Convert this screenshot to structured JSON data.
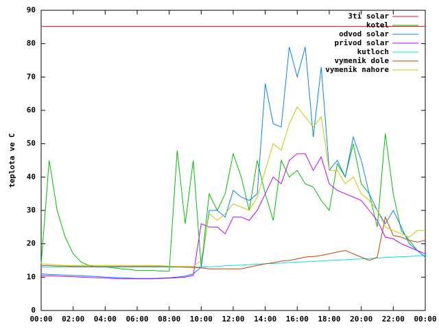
{
  "chart_data": {
    "type": "line",
    "ylabel": "teplota ve C",
    "legend": "top-right",
    "xlim": [
      0,
      24
    ],
    "xticks": [
      {
        "value": 0,
        "label": "00:00"
      },
      {
        "value": 2,
        "label": "02:00"
      },
      {
        "value": 4,
        "label": "04:00"
      },
      {
        "value": 6,
        "label": "06:00"
      },
      {
        "value": 8,
        "label": "08:00"
      },
      {
        "value": 10,
        "label": "10:00"
      },
      {
        "value": 12,
        "label": "12:00"
      },
      {
        "value": 14,
        "label": "14:00"
      },
      {
        "value": 16,
        "label": "16:00"
      },
      {
        "value": 18,
        "label": "18:00"
      },
      {
        "value": 20,
        "label": "20:00"
      },
      {
        "value": 22,
        "label": "22:00"
      },
      {
        "value": 24,
        "label": "00:00"
      }
    ],
    "ylim": [
      0,
      90
    ],
    "yticks": [
      0,
      10,
      20,
      30,
      40,
      50,
      60,
      70,
      80,
      90
    ],
    "x": [
      0,
      0.5,
      1,
      1.5,
      2,
      2.5,
      3,
      3.5,
      4,
      4.5,
      5,
      5.5,
      6,
      6.5,
      7,
      7.5,
      8,
      8.5,
      9,
      9.5,
      10,
      10.5,
      11,
      11.5,
      12,
      12.5,
      13,
      13.5,
      14,
      14.5,
      15,
      15.5,
      16,
      16.5,
      17,
      17.5,
      18,
      18.5,
      19,
      19.5,
      20,
      20.5,
      21,
      21.5,
      22,
      22.5,
      23,
      23.5,
      24
    ],
    "series": [
      {
        "name": "3ti solar",
        "color": "#ff0000",
        "values": [
          85.2,
          85.2,
          85.2,
          85.2,
          85.2,
          85.2,
          85.2,
          85.2,
          85.2,
          85.2,
          85.2,
          85.2,
          85.2,
          85.2,
          85.2,
          85.2,
          85.2,
          85.2,
          85.2,
          85.2,
          85.2,
          85.2,
          85.2,
          85.2,
          85.2,
          85.2,
          85.2,
          85.2,
          85.2,
          85.2,
          85.2,
          85.2,
          85.2,
          85.2,
          85.2,
          85.2,
          85.2,
          85.2,
          85.2,
          85.2,
          85.2,
          85.2,
          85.2,
          85.2,
          85.2,
          85.2,
          85.2,
          85.2,
          85.2
        ]
      },
      {
        "name": "kotel",
        "color": "#00c000",
        "values": [
          14,
          45,
          30,
          22,
          17,
          14.5,
          13.5,
          13,
          13,
          12.8,
          12.5,
          12.3,
          12,
          12,
          12,
          11.8,
          11.8,
          48,
          26,
          45,
          13,
          35,
          30,
          35,
          47,
          40,
          30,
          45,
          35,
          27,
          45,
          40,
          42,
          38,
          37,
          33,
          30,
          44,
          40,
          50,
          38,
          35,
          25,
          53,
          35,
          24,
          21,
          18,
          16
        ]
      },
      {
        "name": "odvod solar",
        "color": "#0080ff",
        "values": [
          11,
          10.8,
          10.7,
          10.6,
          10.5,
          10.4,
          10.3,
          10.2,
          10,
          9.9,
          9.8,
          9.7,
          9.6,
          9.6,
          9.6,
          9.7,
          9.8,
          10,
          10.3,
          11,
          13,
          30,
          30,
          28,
          36,
          34,
          33,
          35,
          68,
          56,
          55,
          79,
          70,
          79,
          52,
          73,
          42,
          45,
          40,
          52,
          45,
          35,
          30,
          26,
          30,
          25,
          20,
          18,
          16
        ]
      },
      {
        "name": "privod solar",
        "color": "#c000ff",
        "values": [
          10.5,
          10.4,
          10.3,
          10.2,
          10.1,
          10,
          9.9,
          9.8,
          9.7,
          9.6,
          9.5,
          9.5,
          9.5,
          9.5,
          9.5,
          9.6,
          9.7,
          9.8,
          10,
          10.5,
          26,
          25,
          25,
          23,
          28,
          28,
          27,
          30,
          35,
          40,
          38,
          45,
          47,
          47,
          42,
          46,
          38,
          36,
          35,
          34,
          33,
          30,
          27,
          22,
          21.5,
          20,
          19,
          18,
          17
        ]
      },
      {
        "name": "kutloch",
        "color": "#00e0e0",
        "values": [
          13,
          13,
          13,
          13,
          13,
          13,
          13,
          13,
          13,
          13,
          13,
          13,
          13,
          13,
          13,
          13,
          13,
          13,
          13,
          13,
          13,
          13.1,
          13.2,
          13.4,
          13.5,
          13.6,
          13.7,
          13.9,
          14,
          14.1,
          14.2,
          14.4,
          14.5,
          14.6,
          14.7,
          14.9,
          15,
          15.1,
          15.2,
          15.4,
          15.5,
          15.6,
          15.7,
          15.9,
          16,
          16.1,
          16.2,
          16.4,
          16.5
        ]
      },
      {
        "name": "vymenik dole",
        "color": "#c04000",
        "values": [
          13.5,
          13.4,
          13.3,
          13.3,
          13.2,
          13.2,
          13.2,
          13.2,
          13.2,
          13.2,
          13.2,
          13.2,
          13.2,
          13.2,
          13.2,
          13.2,
          13.2,
          13.1,
          13,
          12.9,
          12.8,
          12.5,
          12.5,
          12.5,
          12.5,
          12.5,
          13,
          13.5,
          14,
          14.3,
          14.8,
          15,
          15.5,
          16,
          16.2,
          16.5,
          17,
          17.5,
          18,
          17,
          16,
          15,
          16,
          28,
          22.5,
          22,
          21,
          20.5,
          21
        ]
      },
      {
        "name": "vymenik nahore",
        "color": "#c8c800",
        "values": [
          14,
          13.8,
          13.6,
          13.5,
          13.5,
          13.5,
          13.5,
          13.5,
          13.5,
          13.5,
          13.5,
          13.5,
          13.5,
          13.5,
          13.5,
          13.4,
          13.3,
          13.2,
          13.2,
          13.2,
          15,
          29,
          27,
          29,
          32,
          31,
          30,
          34,
          42,
          50,
          48,
          56,
          61,
          58,
          55,
          58,
          42,
          42,
          38,
          40,
          35,
          33,
          30,
          25,
          24,
          23,
          22,
          24,
          24
        ]
      }
    ]
  }
}
